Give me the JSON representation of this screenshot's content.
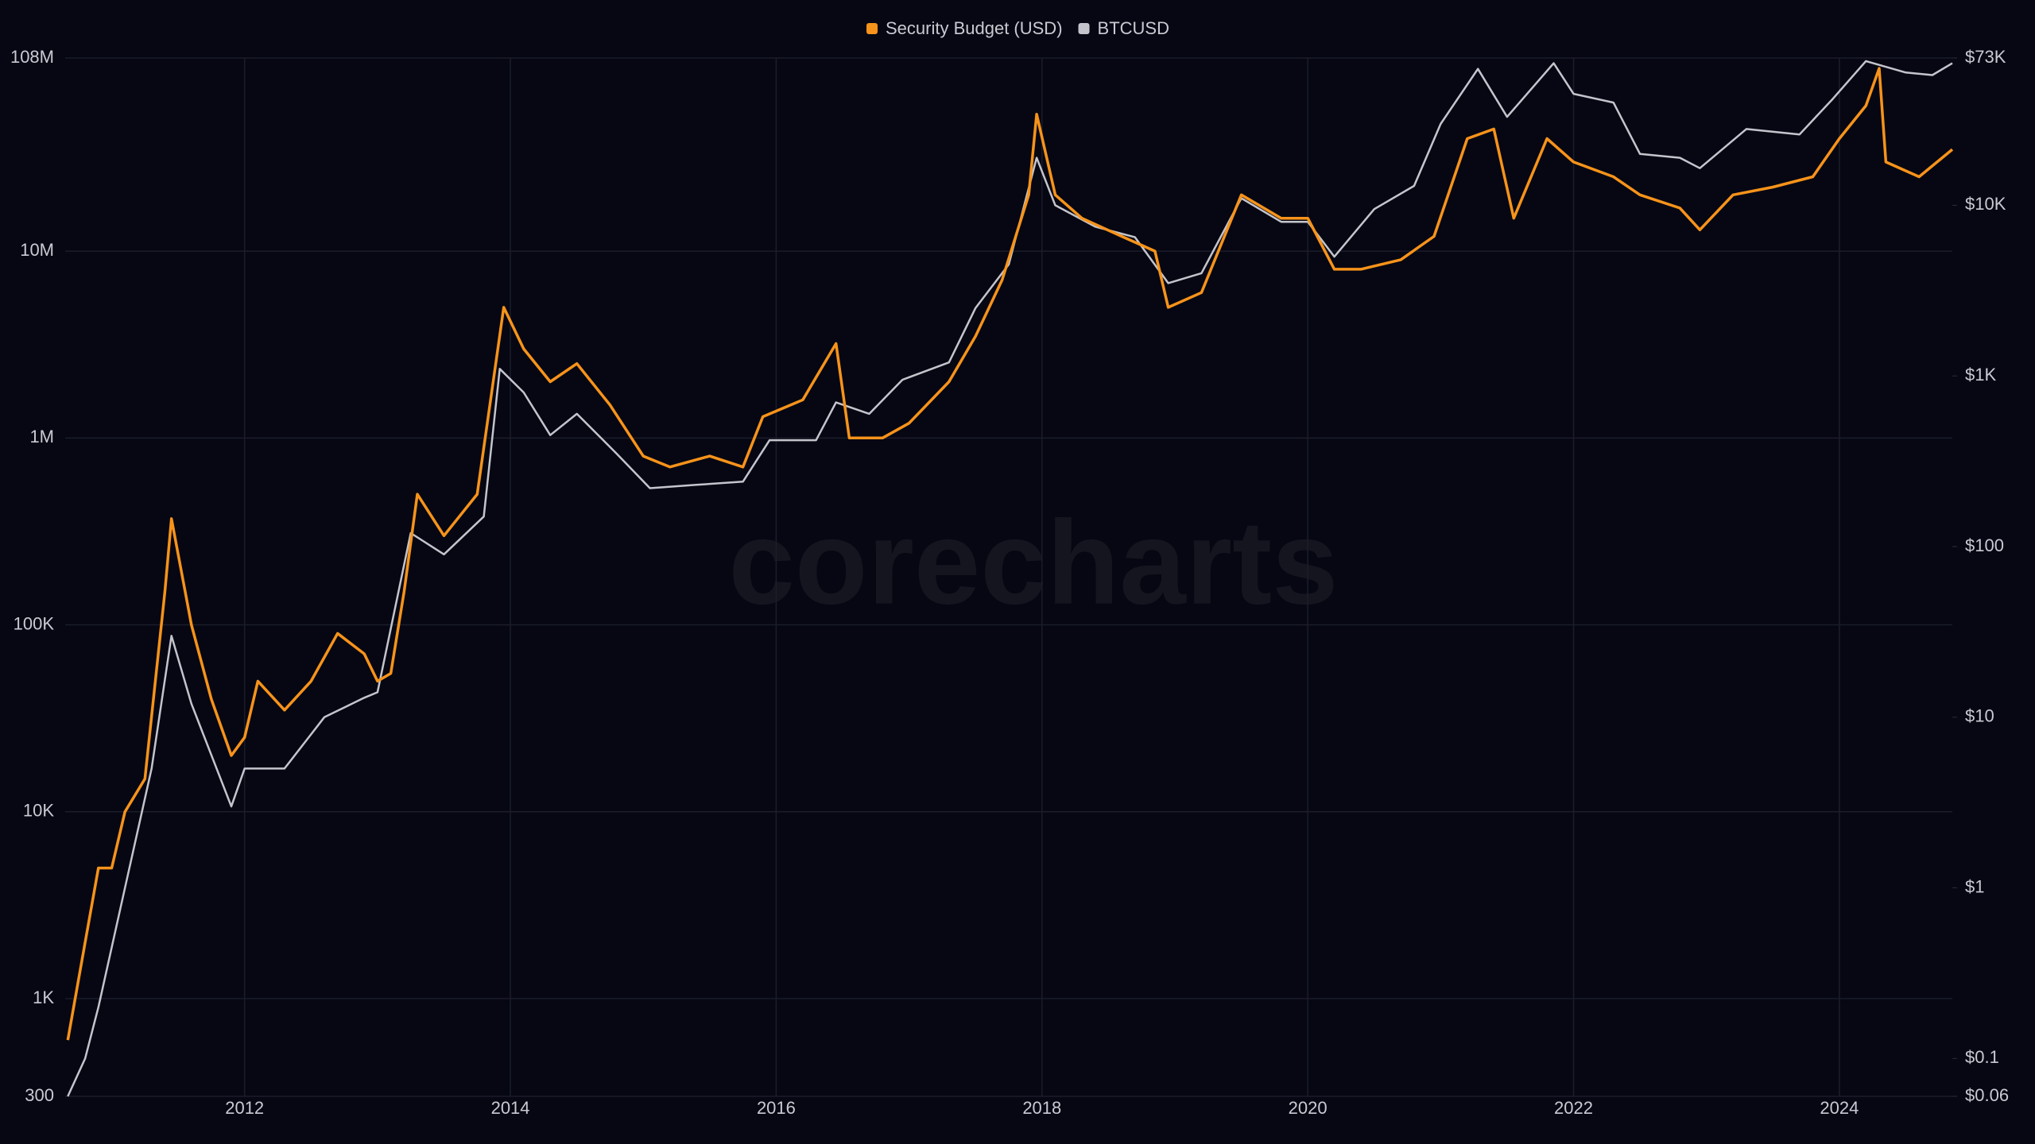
{
  "chart_data": {
    "type": "line",
    "watermark": "corecharts",
    "log_y": true,
    "log_y2": true,
    "grid": true,
    "legend": "top",
    "xlim": [
      2010.65,
      2024.85
    ],
    "xticks": [
      2012,
      2014,
      2016,
      2018,
      2020,
      2022,
      2024
    ],
    "ylim": [
      300,
      108000000
    ],
    "yticks": [
      300,
      {
        "value": 1000,
        "label": "1K"
      },
      {
        "value": 10000,
        "label": "10K"
      },
      {
        "value": 100000,
        "label": "100K"
      },
      {
        "value": 1000000,
        "label": "1M"
      },
      {
        "value": 10000000,
        "label": "10M"
      },
      {
        "value": 108000000,
        "label": "108M"
      }
    ],
    "y2lim": [
      0.06,
      73000
    ],
    "y2ticks": [
      {
        "value": 0.06,
        "label": "$0.06"
      },
      {
        "value": 0.1,
        "label": "$0.1"
      },
      {
        "value": 1,
        "label": "$1"
      },
      {
        "value": 10,
        "label": "$10"
      },
      {
        "value": 100,
        "label": "$100"
      },
      {
        "value": 1000,
        "label": "$1K"
      },
      {
        "value": 10000,
        "label": "$10K"
      },
      {
        "value": 73000,
        "label": "$73K"
      }
    ],
    "series": [
      {
        "name": "Security Budget (USD)",
        "color": "#f7931a",
        "x": [
          2010.67,
          2010.8,
          2010.9,
          2011.0,
          2011.1,
          2011.25,
          2011.4,
          2011.45,
          2011.6,
          2011.75,
          2011.9,
          2012.0,
          2012.1,
          2012.3,
          2012.5,
          2012.7,
          2012.9,
          2013.0,
          2013.1,
          2013.2,
          2013.3,
          2013.5,
          2013.75,
          2013.95,
          2014.1,
          2014.3,
          2014.5,
          2014.75,
          2015.0,
          2015.2,
          2015.5,
          2015.75,
          2015.9,
          2016.2,
          2016.45,
          2016.55,
          2016.8,
          2017.0,
          2017.3,
          2017.5,
          2017.7,
          2017.9,
          2017.96,
          2018.1,
          2018.3,
          2018.6,
          2018.85,
          2018.95,
          2019.2,
          2019.5,
          2019.8,
          2020.0,
          2020.2,
          2020.4,
          2020.7,
          2020.95,
          2021.2,
          2021.4,
          2021.55,
          2021.8,
          2022.0,
          2022.3,
          2022.5,
          2022.8,
          2022.95,
          2023.2,
          2023.5,
          2023.8,
          2024.0,
          2024.2,
          2024.3,
          2024.35,
          2024.6,
          2024.85
        ],
        "values": [
          600,
          2000,
          5000,
          5000,
          10000,
          15000,
          150000,
          370000,
          100000,
          40000,
          20000,
          25000,
          50000,
          35000,
          50000,
          90000,
          70000,
          50000,
          55000,
          150000,
          500000,
          300000,
          500000,
          5000000,
          3000000,
          2000000,
          2500000,
          1500000,
          800000,
          700000,
          800000,
          700000,
          1300000,
          1600000,
          3200000,
          1000000,
          1000000,
          1200000,
          2000000,
          3500000,
          7000000,
          20000000,
          54000000,
          20000000,
          15000000,
          12000000,
          10000000,
          5000000,
          6000000,
          20000000,
          15000000,
          15000000,
          8000000,
          8000000,
          9000000,
          12000000,
          40000000,
          45000000,
          15000000,
          40000000,
          30000000,
          25000000,
          20000000,
          17000000,
          13000000,
          20000000,
          22000000,
          25000000,
          40000000,
          60000000,
          95000000,
          30000000,
          25000000,
          35000000
        ]
      },
      {
        "name": "BTCUSD",
        "color": "#c4c5cc",
        "axis": "y2",
        "x": [
          2010.67,
          2010.8,
          2010.9,
          2011.1,
          2011.3,
          2011.45,
          2011.6,
          2011.9,
          2012.0,
          2012.3,
          2012.6,
          2012.9,
          2013.0,
          2013.25,
          2013.5,
          2013.8,
          2013.92,
          2014.1,
          2014.3,
          2014.5,
          2014.8,
          2015.05,
          2015.4,
          2015.75,
          2015.95,
          2016.3,
          2016.45,
          2016.7,
          2016.95,
          2017.3,
          2017.5,
          2017.75,
          2017.96,
          2018.1,
          2018.4,
          2018.7,
          2018.95,
          2019.2,
          2019.5,
          2019.8,
          2020.0,
          2020.2,
          2020.5,
          2020.8,
          2021.0,
          2021.28,
          2021.5,
          2021.85,
          2022.0,
          2022.3,
          2022.5,
          2022.8,
          2022.95,
          2023.3,
          2023.7,
          2023.95,
          2024.2,
          2024.5,
          2024.7,
          2024.85
        ],
        "values": [
          0.06,
          0.1,
          0.2,
          1,
          5,
          30,
          12,
          3,
          5,
          5,
          10,
          13,
          14,
          120,
          90,
          150,
          1100,
          800,
          450,
          600,
          350,
          220,
          230,
          240,
          420,
          420,
          700,
          600,
          950,
          1200,
          2500,
          4500,
          19000,
          10000,
          7500,
          6500,
          3500,
          4000,
          11000,
          8000,
          8000,
          5000,
          9500,
          13000,
          30000,
          63000,
          33000,
          68000,
          45000,
          40000,
          20000,
          19000,
          16500,
          28000,
          26000,
          42000,
          70000,
          60000,
          58000,
          68000
        ]
      }
    ]
  }
}
